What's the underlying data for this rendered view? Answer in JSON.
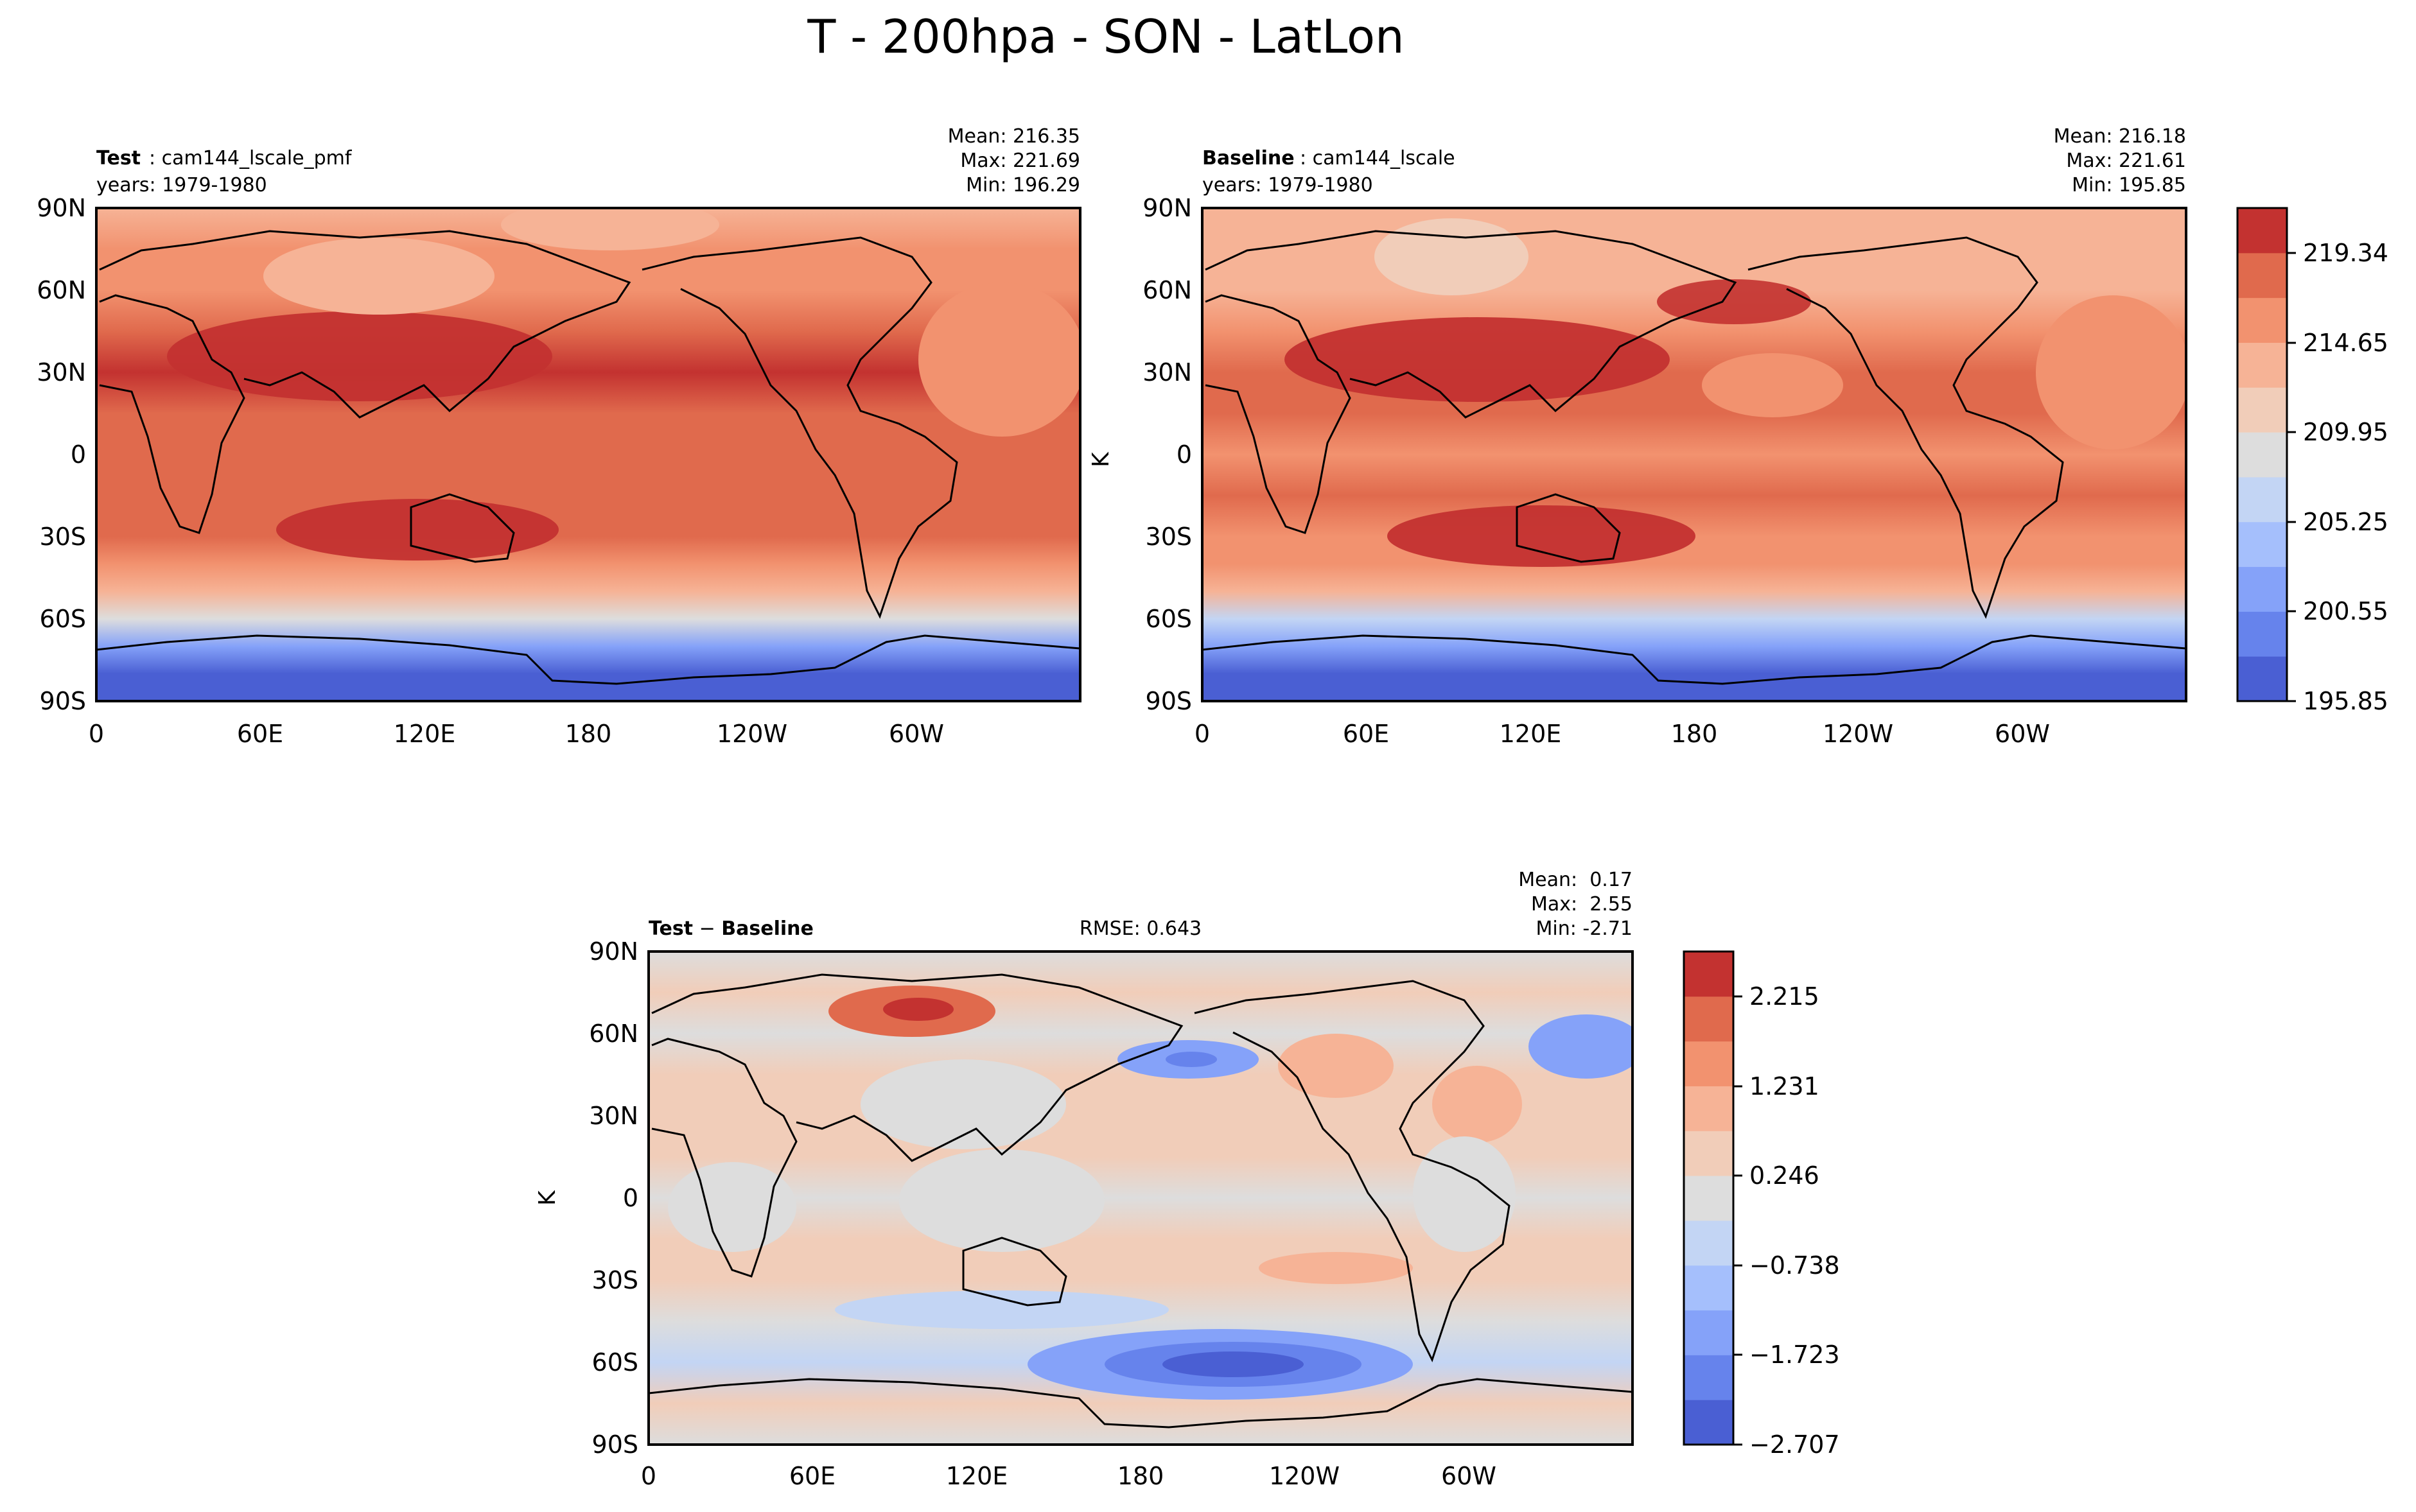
{
  "figure": {
    "title": "T - 200hpa - SON - LatLon"
  },
  "chart_data": [
    {
      "type": "heatmap",
      "panel": "test",
      "label_bold": "Test",
      "label_text": ": cam144_lscale_pmf",
      "years": "years: 1979-1980",
      "stats": [
        "Mean: 216.35",
        "Max: 221.69",
        "Min: 196.29"
      ],
      "xticks": [
        "0",
        "60E",
        "120E",
        "180",
        "120W",
        "60W"
      ],
      "yticks": [
        "90N",
        "60N",
        "30N",
        "0",
        "30S",
        "60S",
        "90S"
      ],
      "xlim": [
        0,
        360
      ],
      "ylim": [
        -90,
        90
      ],
      "field": [
        {
          "lat": -90,
          "value": 196.29
        },
        {
          "lat": -80,
          "value": 198.0
        },
        {
          "lat": -70,
          "value": 202.0
        },
        {
          "lat": -60,
          "value": 208.0
        },
        {
          "lat": -50,
          "value": 213.0
        },
        {
          "lat": -40,
          "value": 215.5
        },
        {
          "lat": -30,
          "value": 217.0
        },
        {
          "lat": -15,
          "value": 217.5
        },
        {
          "lat": 0,
          "value": 217.0
        },
        {
          "lat": 15,
          "value": 217.5
        },
        {
          "lat": 30,
          "value": 219.5
        },
        {
          "lat": 45,
          "value": 217.0
        },
        {
          "lat": 60,
          "value": 215.0
        },
        {
          "lat": 75,
          "value": 215.0
        },
        {
          "lat": 90,
          "value": 214.5
        }
      ]
    },
    {
      "type": "heatmap",
      "panel": "baseline",
      "label_bold": "Baseline",
      "label_text": ": cam144_lscale",
      "years": "years: 1979-1980",
      "stats": [
        "Mean: 216.18",
        "Max: 221.61",
        "Min: 195.85"
      ],
      "xticks": [
        "0",
        "60E",
        "120E",
        "180",
        "120W",
        "60W"
      ],
      "yticks": [
        "90N",
        "60N",
        "30N",
        "0",
        "30S",
        "60S",
        "90S"
      ],
      "xlim": [
        0,
        360
      ],
      "ylim": [
        -90,
        90
      ],
      "colorbar_label": "K",
      "colorbar_ticks": [
        "195.85",
        "200.55",
        "205.25",
        "209.95",
        "214.65",
        "219.34"
      ],
      "colorbar_colors": [
        "#4a5fd3",
        "#6683ec",
        "#85a2f9",
        "#a5bffc",
        "#c3d5f4",
        "#dddddd",
        "#f1cdb9",
        "#f6b396",
        "#f2926f",
        "#e06a4d",
        "#c33230"
      ],
      "field": [
        {
          "lat": -90,
          "value": 195.85
        },
        {
          "lat": -80,
          "value": 197.5
        },
        {
          "lat": -70,
          "value": 201.5
        },
        {
          "lat": -60,
          "value": 207.5
        },
        {
          "lat": -50,
          "value": 212.5
        },
        {
          "lat": -40,
          "value": 215.0
        },
        {
          "lat": -30,
          "value": 216.8
        },
        {
          "lat": -15,
          "value": 217.0
        },
        {
          "lat": 0,
          "value": 216.5
        },
        {
          "lat": 15,
          "value": 217.0
        },
        {
          "lat": 30,
          "value": 219.2
        },
        {
          "lat": 45,
          "value": 216.5
        },
        {
          "lat": 60,
          "value": 214.0
        },
        {
          "lat": 75,
          "value": 213.5
        },
        {
          "lat": 90,
          "value": 213.0
        }
      ]
    },
    {
      "type": "heatmap",
      "panel": "difference",
      "label_bold_a": "Test",
      "label_minus": "−",
      "label_bold_b": "Baseline",
      "rmse": "RMSE: 0.643",
      "stats": [
        "Mean:  0.17",
        "Max:  2.55",
        "Min: -2.71"
      ],
      "xticks": [
        "0",
        "60E",
        "120E",
        "180",
        "120W",
        "60W"
      ],
      "yticks": [
        "90N",
        "60N",
        "30N",
        "0",
        "30S",
        "60S",
        "90S"
      ],
      "xlim": [
        0,
        360
      ],
      "ylim": [
        -90,
        90
      ],
      "colorbar_label": "K",
      "colorbar_ticks": [
        "−2.707",
        "−1.723",
        "−0.738",
        "0.246",
        "1.231",
        "2.215"
      ],
      "colorbar_colors": [
        "#4a5fd3",
        "#6683ec",
        "#85a2f9",
        "#a5bffc",
        "#c3d5f4",
        "#dddddd",
        "#f1cdb9",
        "#f6b396",
        "#f2926f",
        "#e06a4d",
        "#c33230"
      ],
      "field": [
        {
          "lat": -90,
          "value": 0.2
        },
        {
          "lat": -75,
          "value": 0.3
        },
        {
          "lat": -60,
          "value": -0.6
        },
        {
          "lat": -45,
          "value": 0.1
        },
        {
          "lat": -30,
          "value": 0.4
        },
        {
          "lat": -15,
          "value": 0.3
        },
        {
          "lat": 0,
          "value": 0.2
        },
        {
          "lat": 15,
          "value": 0.3
        },
        {
          "lat": 30,
          "value": 0.3
        },
        {
          "lat": 45,
          "value": 0.4
        },
        {
          "lat": 60,
          "value": 0.2
        },
        {
          "lat": 75,
          "value": 0.5
        },
        {
          "lat": 90,
          "value": 0.1
        }
      ]
    }
  ]
}
